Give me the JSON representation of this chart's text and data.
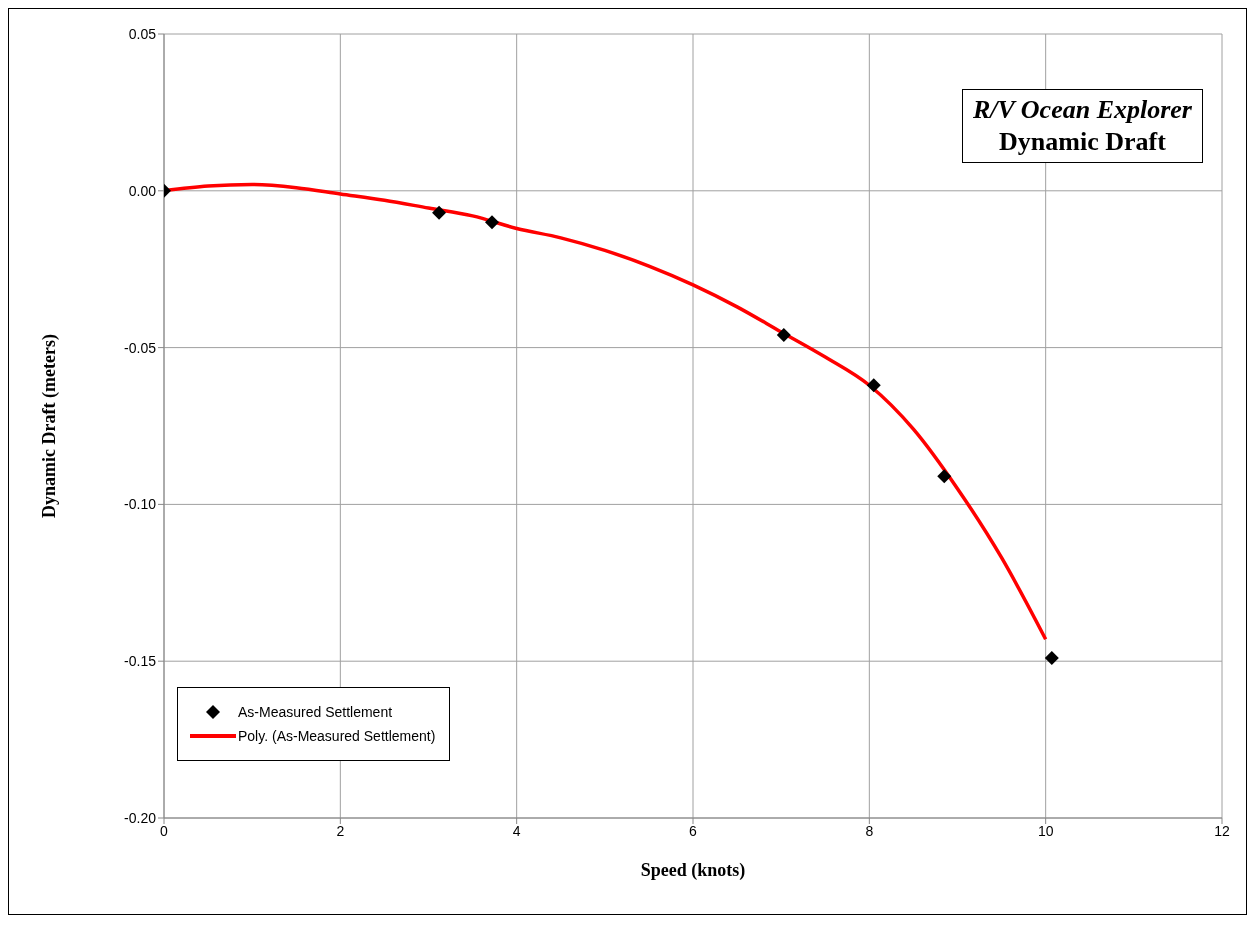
{
  "chart_data": {
    "type": "scatter",
    "title": "R/V Ocean Explorer",
    "subtitle": "Dynamic Draft",
    "xlabel": "Speed (knots)",
    "ylabel": "Dynamic Draft (meters)",
    "xlim": [
      0,
      12
    ],
    "xticks": [
      0,
      2,
      4,
      6,
      8,
      10,
      12
    ],
    "ylim": [
      -0.2,
      0.05
    ],
    "yticks": [
      {
        "value": -0.2,
        "label": "-0.20"
      },
      -0.15,
      {
        "value": -0.1,
        "label": "-0.10"
      },
      -0.05,
      {
        "value": 0,
        "label": "0.00"
      },
      0.05
    ],
    "grid": true,
    "legend": "bottom left",
    "series": [
      {
        "name": "As-Measured Settlement",
        "marker": "diamond",
        "color": "#000000",
        "x": [
          0,
          3.12,
          3.72,
          7.03,
          8.05,
          8.85,
          10.07
        ],
        "values": [
          0,
          -0.007,
          -0.01,
          -0.046,
          -0.062,
          -0.091,
          -0.149
        ]
      },
      {
        "name": "Poly. (As-Measured Settlement)",
        "type": "line",
        "marker": "none",
        "line_style": "solid",
        "color": "#ff0000",
        "x": [
          0,
          0.5,
          1,
          1.5,
          2,
          2.5,
          3,
          3.5,
          4,
          4.5,
          5,
          5.5,
          6,
          6.5,
          7,
          7.5,
          8,
          8.5,
          9,
          9.5,
          10
        ],
        "values": [
          0,
          0.0015,
          0.002,
          0.001,
          -0.001,
          -0.003,
          -0.0055,
          -0.008,
          -0.012,
          -0.015,
          -0.019,
          -0.024,
          -0.03,
          -0.037,
          -0.045,
          -0.053,
          -0.062,
          -0.076,
          -0.095,
          -0.117,
          -0.143
        ]
      }
    ]
  }
}
